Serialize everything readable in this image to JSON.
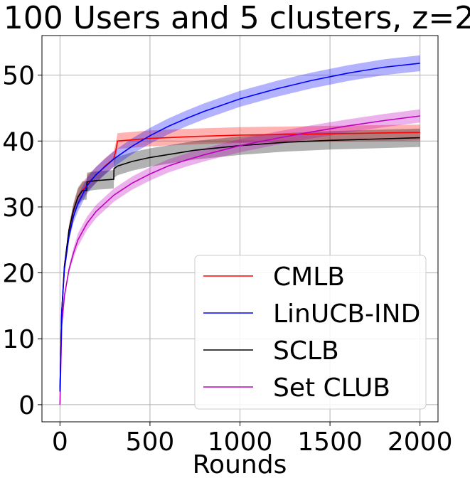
{
  "chart_data": {
    "type": "line",
    "title": "100 Users and 5 clusters, z=2",
    "xlabel": "Rounds",
    "ylabel": "",
    "xlim": [
      -100,
      2100
    ],
    "ylim": [
      -2.6,
      56.0
    ],
    "xticks": [
      0,
      500,
      1000,
      1500,
      2000
    ],
    "xtick_labels": [
      "0",
      "500",
      "1000",
      "1500",
      "2000"
    ],
    "yticks": [
      0,
      10,
      20,
      30,
      40,
      50
    ],
    "ytick_labels": [
      "0",
      "10",
      "20",
      "30",
      "40",
      "50"
    ],
    "grid": true,
    "legend": "lower-right",
    "series": [
      {
        "name": "CMLB",
        "color": "#ff0000",
        "x": [
          0,
          10,
          25,
          50,
          75,
          100,
          125,
          149,
          150,
          200,
          250,
          299,
          300,
          310,
          320,
          500,
          750,
          1000,
          1250,
          1500,
          1750,
          2000
        ],
        "y": [
          2.0,
          14.0,
          21.0,
          26.5,
          29.5,
          31.5,
          32.5,
          33.3,
          33.6,
          34.8,
          36.2,
          37.3,
          37.5,
          38.5,
          40.0,
          40.4,
          40.7,
          40.9,
          41.0,
          41.1,
          41.2,
          41.3
        ],
        "band": 1.2
      },
      {
        "name": "LinUCB-IND",
        "color": "#0000ff",
        "x": [
          0,
          10,
          25,
          50,
          75,
          100,
          150,
          200,
          300,
          400,
          500,
          600,
          700,
          800,
          1000,
          1200,
          1400,
          1600,
          1800,
          2000
        ],
        "y": [
          2.0,
          14.0,
          20.5,
          25.5,
          28.5,
          30.5,
          33.2,
          34.9,
          37.3,
          39.2,
          40.8,
          42.2,
          43.4,
          44.5,
          46.4,
          47.9,
          49.2,
          50.3,
          51.2,
          51.8
        ],
        "band": 1.2
      },
      {
        "name": "SCLB",
        "color": "#000000",
        "x": [
          0,
          10,
          25,
          50,
          75,
          100,
          125,
          149,
          150,
          200,
          250,
          299,
          300,
          320,
          400,
          500,
          750,
          1000,
          1250,
          1500,
          1750,
          2000
        ],
        "y": [
          2.0,
          14.0,
          21.0,
          26.5,
          29.5,
          31.5,
          32.5,
          32.5,
          33.8,
          34.0,
          34.1,
          34.2,
          35.8,
          36.2,
          36.9,
          37.5,
          38.6,
          39.3,
          39.8,
          40.1,
          40.3,
          40.5
        ],
        "band": 1.4
      },
      {
        "name": "Set CLUB",
        "color": "#bf00bf",
        "x": [
          0,
          10,
          25,
          50,
          75,
          100,
          150,
          200,
          300,
          400,
          500,
          600,
          700,
          800,
          1000,
          1200,
          1400,
          1600,
          1800,
          2000
        ],
        "y": [
          0.0,
          12.0,
          16.5,
          20.5,
          23.0,
          25.0,
          27.5,
          29.3,
          31.8,
          33.6,
          35.0,
          36.2,
          37.1,
          37.9,
          39.3,
          40.4,
          41.4,
          42.3,
          43.1,
          43.8
        ],
        "band": 1.0
      }
    ]
  }
}
